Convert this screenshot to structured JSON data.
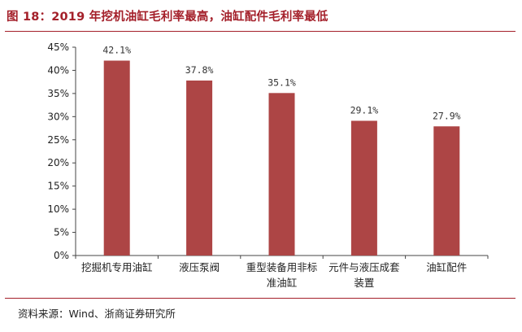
{
  "title": "图 18：2019 年挖机油缸毛利率最高，油缸配件毛利率最低",
  "source": "资料来源：Wind、浙商证券研究所",
  "colors": {
    "bar": "#ad4545",
    "title": "#a4202a",
    "axis": "#444444"
  },
  "chart_data": {
    "type": "bar",
    "categories": [
      "挖掘机专用油缸",
      "液压泵阀",
      "重型装备用非标准油缸",
      "元件与液压成套装置",
      "油缸配件"
    ],
    "category_lines": [
      [
        "挖掘机专用油缸"
      ],
      [
        "液压泵阀"
      ],
      [
        "重型装备用非标",
        "准油缸"
      ],
      [
        "元件与液压成套",
        "装置"
      ],
      [
        "油缸配件"
      ]
    ],
    "values": [
      42.1,
      37.8,
      35.1,
      29.1,
      27.9
    ],
    "value_labels": [
      "42.1%",
      "37.8%",
      "35.1%",
      "29.1%",
      "27.9%"
    ],
    "yticks": [
      "0%",
      "5%",
      "10%",
      "15%",
      "20%",
      "25%",
      "30%",
      "35%",
      "40%",
      "45%"
    ],
    "ylim": [
      0,
      45
    ],
    "grid": false
  }
}
